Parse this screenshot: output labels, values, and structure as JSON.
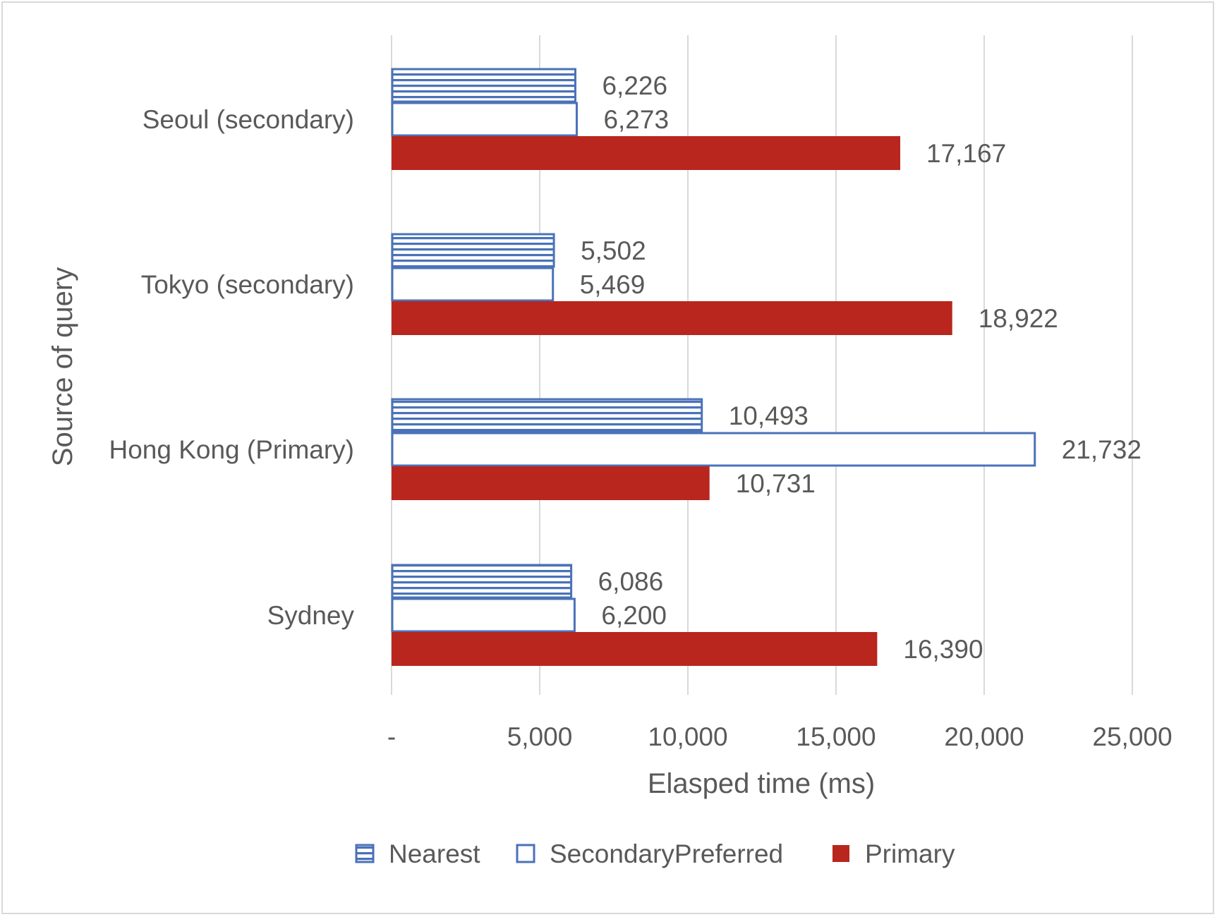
{
  "chart_data": {
    "type": "bar",
    "orientation": "horizontal",
    "title": "",
    "xlabel": "Elasped time (ms)",
    "ylabel": "Source of query",
    "categories": [
      "Seoul (secondary)",
      "Tokyo (secondary)",
      "Hong Kong (Primary)",
      "Sydney"
    ],
    "series": [
      {
        "name": "Nearest",
        "values": [
          6226,
          5502,
          10493,
          6086
        ],
        "value_labels": [
          "6,226",
          "5,502",
          "10,493",
          "6,086"
        ],
        "style": "horizontal-stripes",
        "color": "#4a72b8"
      },
      {
        "name": "SecondaryPreferred",
        "values": [
          6273,
          5469,
          21732,
          6200
        ],
        "value_labels": [
          "6,273",
          "5,469",
          "21,732",
          "6,200"
        ],
        "style": "outline",
        "color": "#4a72b8"
      },
      {
        "name": "Primary",
        "values": [
          17167,
          18922,
          10731,
          16390
        ],
        "value_labels": [
          "17,167",
          "18,922",
          "10,731",
          "16,390"
        ],
        "style": "solid",
        "color": "#b8261e"
      }
    ],
    "xlim": [
      0,
      25000
    ],
    "xticks": [
      0,
      5000,
      10000,
      15000,
      20000,
      25000
    ],
    "xtick_labels": [
      "-",
      "5,000",
      "10,000",
      "15,000",
      "20,000",
      "25,000"
    ],
    "grid": "vertical",
    "legend": "bottom",
    "gridline_color": "#d9d9d9"
  }
}
